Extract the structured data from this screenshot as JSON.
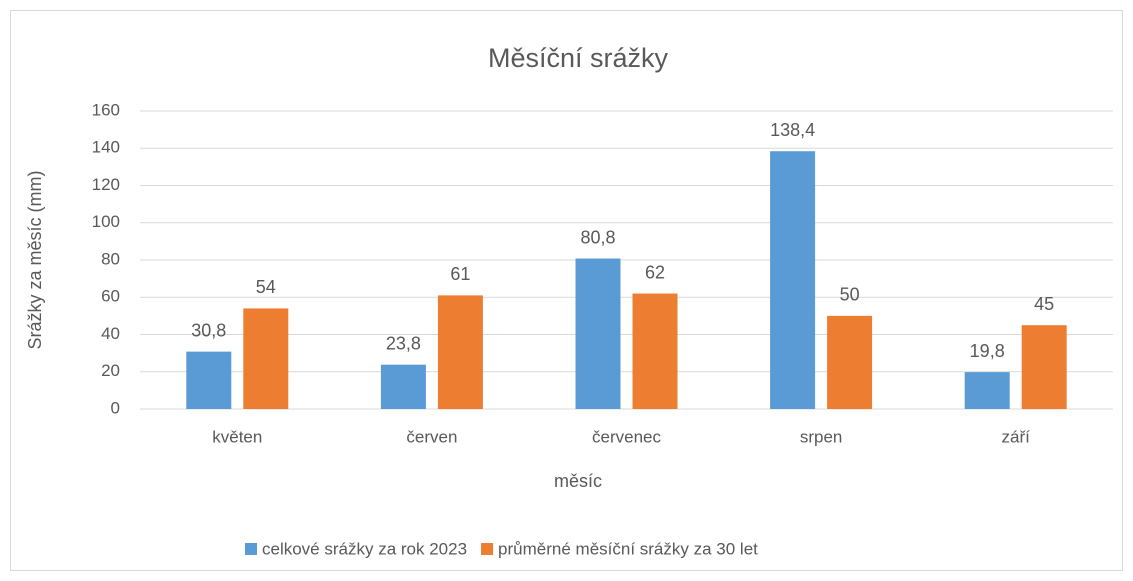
{
  "chart_data": {
    "type": "bar",
    "title": "Měsíční srážky",
    "x_label": "měsíc",
    "y_label": "Srážky za měsíc (mm)",
    "categories": [
      "květen",
      "červen",
      "červenec",
      "srpen",
      "září"
    ],
    "series": [
      {
        "name": "celkové srážky za rok 2023",
        "color": "#5b9bd5",
        "values": [
          30.8,
          23.8,
          80.8,
          138.4,
          19.8
        ],
        "value_labels": [
          "30,8",
          "23,8",
          "80,8",
          "138,4",
          "19,8"
        ]
      },
      {
        "name": "průměrné měsíční srážky za 30 let",
        "color": "#ed7d31",
        "values": [
          54,
          61,
          62,
          50,
          45
        ]
      }
    ],
    "ylim": [
      0,
      160
    ],
    "yticks": [
      0,
      20,
      40,
      60,
      80,
      100,
      120,
      140,
      160
    ],
    "grid": true,
    "legend": "bottom"
  }
}
